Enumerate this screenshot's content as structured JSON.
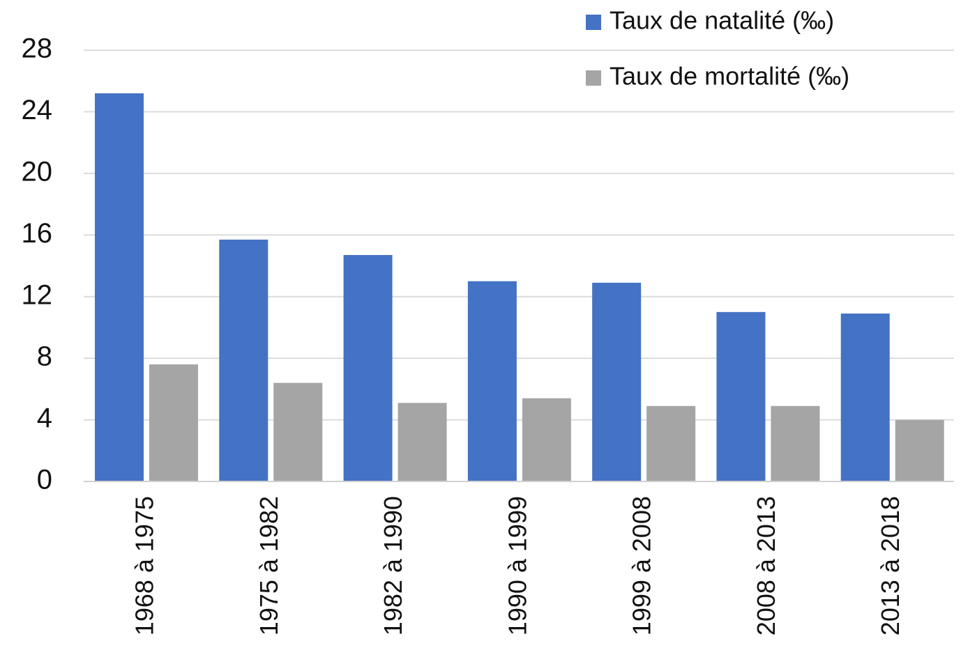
{
  "chart_data": {
    "type": "bar",
    "categories": [
      "1968 à 1975",
      "1975 à 1982",
      "1982 à 1990",
      "1990 à 1999",
      "1999 à 2008",
      "2008 à 2013",
      "2013 à 2018"
    ],
    "series": [
      {
        "name": "Taux de natalité (‰)",
        "color": "#4472c4",
        "values": [
          25.2,
          15.7,
          14.7,
          13.0,
          12.9,
          11.0,
          10.9
        ]
      },
      {
        "name": "Taux de mortalité (‰)",
        "color": "#a5a5a5",
        "values": [
          7.6,
          6.4,
          5.1,
          5.4,
          4.9,
          4.9,
          4.0
        ]
      }
    ],
    "ylim": [
      0,
      28
    ],
    "yticks": [
      0,
      4,
      8,
      12,
      16,
      20,
      24,
      28
    ],
    "grid": true,
    "legend": "top-right"
  }
}
